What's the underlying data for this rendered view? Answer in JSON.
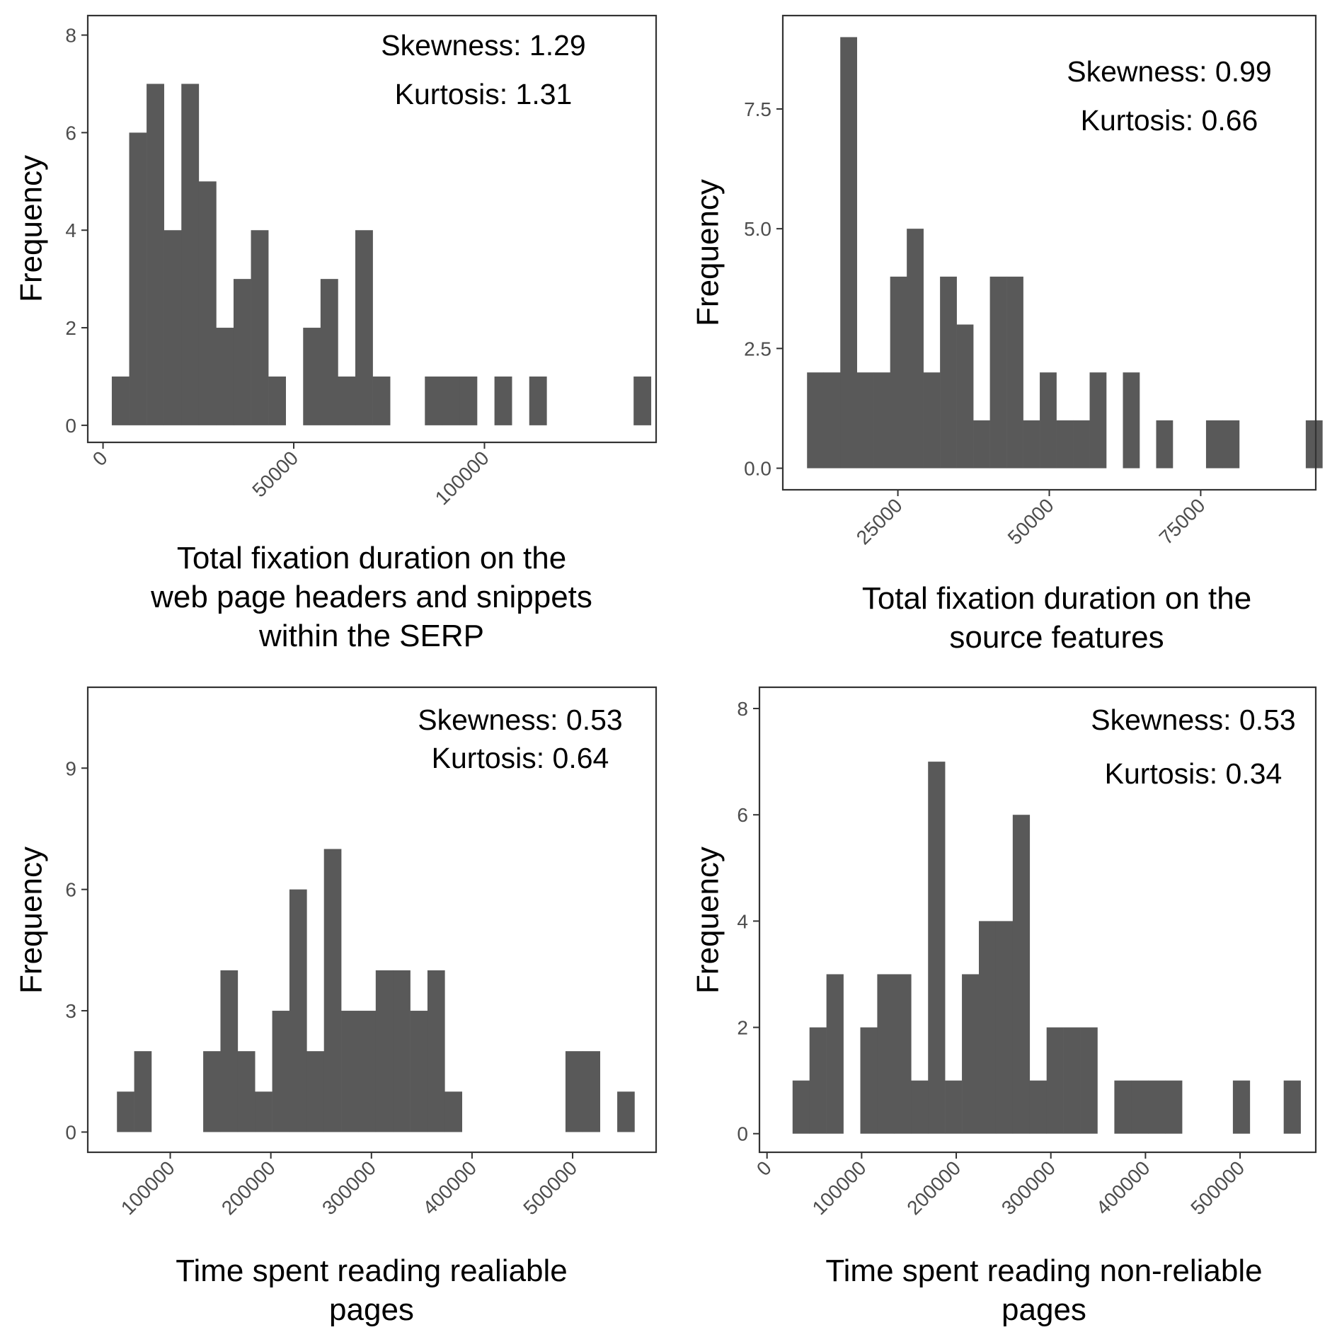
{
  "chart_data": [
    {
      "type": "bar",
      "title": "",
      "xlabel": "Total fixation duration on the web page headers and snippets within the SERP",
      "xlabel_lines": [
        "Total fixation duration on the",
        "web page headers and snippets",
        "within the SERP"
      ],
      "ylabel": "Frequency",
      "skewness_text": "Skewness: 1.29",
      "kurtosis_text": "Kurtosis: 1.31",
      "xlim": [
        -4000,
        145000
      ],
      "ylim": [
        -0.35,
        8.4
      ],
      "xticks": [
        0,
        50000,
        100000
      ],
      "xtick_labels": [
        "0",
        "50000",
        "100000"
      ],
      "yticks": [
        0,
        2,
        4,
        6,
        8
      ],
      "ytick_labels": [
        "0",
        "2",
        "4",
        "6",
        "8"
      ],
      "bin_start": 2300,
      "bin_width": 4560,
      "values": [
        1,
        6,
        7,
        4,
        7,
        5,
        2,
        3,
        4,
        1,
        0,
        2,
        3,
        1,
        4,
        1,
        0,
        0,
        1,
        1,
        1,
        0,
        1,
        0,
        1,
        0,
        0,
        0,
        0,
        0,
        1
      ]
    },
    {
      "type": "bar",
      "title": "",
      "xlabel": "Total fixation duration on the source features",
      "xlabel_lines": [
        "Total fixation duration on the",
        "source features"
      ],
      "ylabel": "Frequency",
      "skewness_text": "Skewness: 0.99",
      "kurtosis_text": "Kurtosis: 0.66",
      "xlim": [
        6000,
        94000
      ],
      "ylim": [
        -0.45,
        9.45
      ],
      "xticks": [
        25000,
        50000,
        75000
      ],
      "xtick_labels": [
        "25000",
        "50000",
        "75000"
      ],
      "yticks": [
        0,
        2.5,
        5,
        7.5
      ],
      "ytick_labels": [
        "0.0",
        "2.5",
        "5.0",
        "7.5"
      ],
      "bin_start": 10000,
      "bin_width": 2745,
      "values": [
        2,
        2,
        9,
        2,
        2,
        4,
        5,
        2,
        4,
        3,
        1,
        4,
        4,
        1,
        2,
        1,
        1,
        2,
        0,
        2,
        0,
        1,
        0,
        0,
        1,
        1,
        0,
        0,
        0,
        0,
        1
      ]
    },
    {
      "type": "bar",
      "title": "",
      "xlabel": "Time spent reading realiable pages",
      "xlabel_lines": [
        "Time spent reading realiable",
        "pages"
      ],
      "ylabel": "Frequency",
      "skewness_text": "Skewness: 0.53",
      "kurtosis_text": "Kurtosis: 0.64",
      "xlim": [
        18000,
        583000
      ],
      "ylim": [
        -0.5,
        11.0
      ],
      "xticks": [
        100000,
        200000,
        300000,
        400000,
        500000
      ],
      "xtick_labels": [
        "100000",
        "200000",
        "300000",
        "400000",
        "500000"
      ],
      "yticks": [
        0,
        3,
        6,
        9
      ],
      "ytick_labels": [
        "0",
        "3",
        "6",
        "9"
      ],
      "bin_start": 47000,
      "bin_width": 17150,
      "values": [
        1,
        2,
        0,
        0,
        0,
        2,
        4,
        2,
        1,
        3,
        6,
        2,
        7,
        3,
        3,
        4,
        4,
        3,
        4,
        1,
        0,
        0,
        0,
        0,
        0,
        0,
        2,
        2,
        0,
        1
      ]
    },
    {
      "type": "bar",
      "title": "",
      "xlabel": "Time spent reading non-reliable pages",
      "xlabel_lines": [
        "Time spent reading non-reliable",
        "pages"
      ],
      "ylabel": "Frequency",
      "skewness_text": "Skewness: 0.53",
      "kurtosis_text": "Kurtosis: 0.34",
      "xlim": [
        -8000,
        580000
      ],
      "ylim": [
        -0.35,
        8.4
      ],
      "xticks": [
        0,
        100000,
        200000,
        300000,
        400000,
        500000
      ],
      "xtick_labels": [
        "0",
        "100000",
        "200000",
        "300000",
        "400000",
        "500000"
      ],
      "yticks": [
        0,
        2,
        4,
        6,
        8
      ],
      "ytick_labels": [
        "0",
        "2",
        "4",
        "6",
        "8"
      ],
      "bin_start": 27000,
      "bin_width": 17900,
      "values": [
        1,
        2,
        3,
        0,
        2,
        3,
        3,
        1,
        7,
        1,
        3,
        4,
        4,
        6,
        1,
        2,
        2,
        2,
        0,
        1,
        1,
        1,
        1,
        0,
        0,
        0,
        1,
        0,
        0,
        1
      ]
    }
  ],
  "colors": {
    "bar": "#595959",
    "panel_border": "#333333",
    "tick_text": "#4d4d4d",
    "background": "#ffffff"
  }
}
